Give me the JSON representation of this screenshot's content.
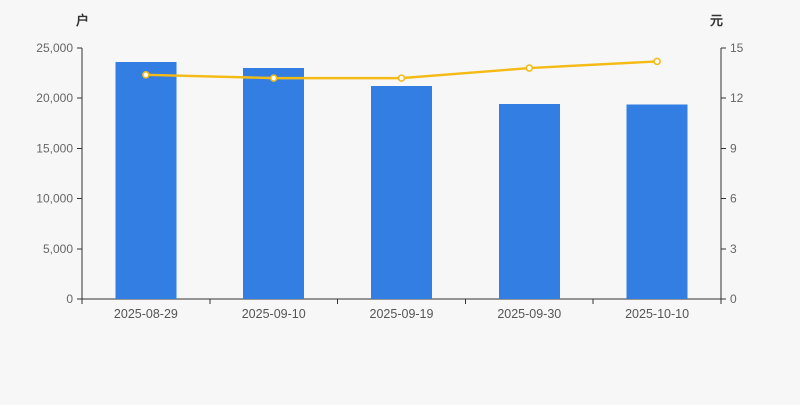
{
  "chart": {
    "background_color": "#f7f7f8",
    "axis_line_color": "#333333",
    "tick_label_color": "#666666",
    "x_label_color": "#555555"
  },
  "chart_data": {
    "type": "bar+line",
    "title": "",
    "categories": [
      "2025-08-29",
      "2025-09-10",
      "2025-09-19",
      "2025-09-30",
      "2025-10-10"
    ],
    "series": [
      {
        "name": "bar-series",
        "type": "bar",
        "yaxis": "left",
        "color": "#337ee2",
        "values": [
          23600,
          23000,
          21200,
          19400,
          19350
        ]
      },
      {
        "name": "line-series",
        "type": "line",
        "yaxis": "right",
        "color": "#f4bb17",
        "marker_fill": "#ffffff",
        "marker_stroke": "#f4bb17",
        "values": [
          13.4,
          13.2,
          13.2,
          13.8,
          14.2
        ]
      }
    ],
    "left_axis": {
      "unit": "户",
      "min": 0,
      "max": 25000,
      "tick_labels": [
        "0",
        "5,000",
        "10,000",
        "15,000",
        "20,000",
        "25,000"
      ]
    },
    "right_axis": {
      "unit": "元",
      "min": 0,
      "max": 15,
      "tick_labels": [
        "0",
        "3",
        "6",
        "9",
        "12",
        "15"
      ]
    },
    "grid_lines": false,
    "legend": false
  }
}
